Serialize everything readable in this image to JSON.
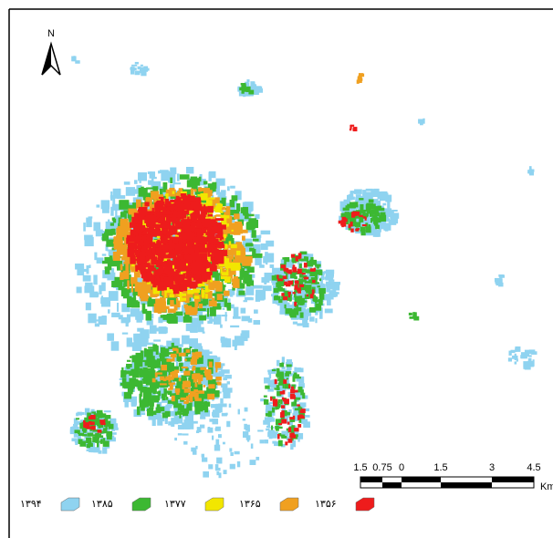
{
  "map": {
    "north_label": "N",
    "scale_bar": {
      "labels": [
        "1.5",
        "0.75",
        "0",
        "1.5",
        "3",
        "4.5"
      ],
      "unit": "Km"
    },
    "legend": [
      {
        "label": "۱۳۹۴",
        "color": "#8fd3f0"
      },
      {
        "label": "۱۳۸۵",
        "color": "#3cb832"
      },
      {
        "label": "۱۳۷۷",
        "color": "#f2e600"
      },
      {
        "label": "۱۳۶۵",
        "color": "#f0a020"
      },
      {
        "label": "۱۳۵۶",
        "color": "#ee1c1c"
      }
    ]
  }
}
